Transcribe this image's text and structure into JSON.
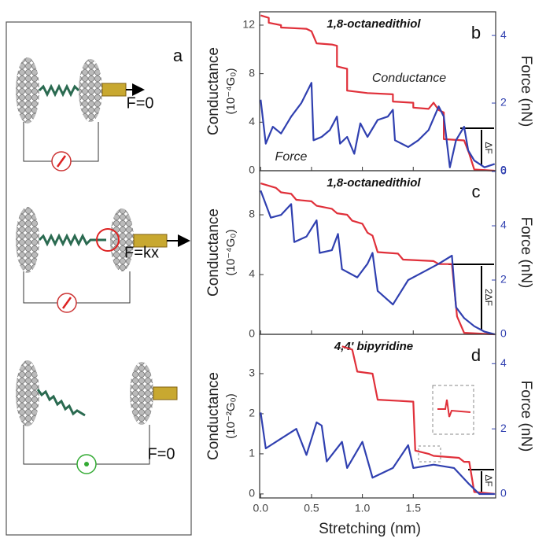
{
  "panel_a": {
    "label": "a",
    "forces": [
      "F=0",
      "F=kx",
      "F=0"
    ]
  },
  "chart_data": [
    {
      "type": "line",
      "title": "1,8-octanedithiol",
      "panel_label": "b",
      "ylabel": "Conductance",
      "yunit": "(10⁻⁴G₀)",
      "y2label": "Force (nN)",
      "xlim": [
        -0.01,
        2.31
      ],
      "ylim": [
        0,
        13.1
      ],
      "yticks": [
        0,
        4,
        8,
        12
      ],
      "y2lim": [
        0,
        4.7
      ],
      "y2ticks": [
        0,
        2,
        4
      ],
      "annotations": [
        "Conductance",
        "Force",
        "ΔF"
      ],
      "series": [
        {
          "color": "#e0303a",
          "x": [
            0,
            0.08,
            0.08,
            0.2,
            0.2,
            0.45,
            0.5,
            0.55,
            0.7,
            0.75,
            0.75,
            0.85,
            0.85,
            1.05,
            1.3,
            1.3,
            1.5,
            1.5,
            1.65,
            1.7,
            1.75,
            1.8,
            1.8,
            2.0,
            2.05,
            2.1,
            2.3
          ],
          "values": [
            12.8,
            12.6,
            12.2,
            12.0,
            11.8,
            11.7,
            11.5,
            10.5,
            10.4,
            10.3,
            8.6,
            8.4,
            6.6,
            6.4,
            6.3,
            5.7,
            5.6,
            5.2,
            5.1,
            5.6,
            5.0,
            4.8,
            2.6,
            2.5,
            1.4,
            0.1,
            0.0
          ]
        },
        {
          "color": "#3040b0",
          "axis": "y2",
          "x": [
            0,
            0.05,
            0.12,
            0.2,
            0.3,
            0.4,
            0.5,
            0.52,
            0.6,
            0.68,
            0.75,
            0.78,
            0.85,
            0.92,
            0.98,
            1.05,
            1.15,
            1.25,
            1.3,
            1.32,
            1.45,
            1.55,
            1.65,
            1.75,
            1.8,
            1.86,
            1.92,
            2.0,
            2.04,
            2.1,
            2.2,
            2.3
          ],
          "values": [
            2.1,
            0.8,
            1.3,
            1.1,
            1.6,
            2.0,
            2.6,
            0.9,
            1.0,
            1.2,
            1.6,
            0.8,
            1.0,
            0.5,
            1.4,
            1.0,
            1.5,
            1.6,
            1.8,
            0.9,
            0.7,
            0.9,
            1.2,
            1.9,
            1.6,
            0.1,
            0.9,
            1.3,
            0.6,
            0.3,
            0.1,
            0.2
          ]
        }
      ]
    },
    {
      "type": "line",
      "title": "1,8-octanedithiol",
      "panel_label": "c",
      "ylabel": "Conductance",
      "yunit": "(10⁻⁴G₀)",
      "y2label": "Force (nN)",
      "xlim": [
        -0.01,
        2.31
      ],
      "ylim": [
        0,
        10.95
      ],
      "yticks": [
        0,
        4,
        8
      ],
      "y2lim": [
        0,
        6.03
      ],
      "y2ticks": [
        0,
        2,
        4,
        6
      ],
      "annotations": [
        "2ΔF"
      ],
      "series": [
        {
          "color": "#e0303a",
          "x": [
            0,
            0.15,
            0.2,
            0.3,
            0.35,
            0.5,
            0.55,
            0.7,
            0.75,
            0.85,
            0.9,
            1.0,
            1.05,
            1.1,
            1.15,
            1.35,
            1.4,
            1.7,
            1.75,
            1.88,
            1.93,
            2.0,
            2.3
          ],
          "values": [
            10.1,
            9.8,
            9.5,
            9.4,
            9.0,
            8.9,
            8.6,
            8.4,
            8.1,
            8.0,
            7.6,
            7.4,
            6.8,
            6.6,
            5.5,
            5.4,
            5.0,
            4.9,
            4.7,
            4.7,
            1.2,
            0.1,
            0.0
          ]
        },
        {
          "color": "#3040b0",
          "axis": "y2",
          "x": [
            0,
            0.1,
            0.2,
            0.3,
            0.33,
            0.45,
            0.55,
            0.58,
            0.7,
            0.76,
            0.8,
            0.95,
            1.05,
            1.1,
            1.15,
            1.3,
            1.45,
            1.6,
            1.75,
            1.88,
            1.92,
            2.0,
            2.1,
            2.2,
            2.3
          ],
          "values": [
            5.3,
            4.3,
            4.4,
            4.8,
            3.4,
            3.6,
            4.2,
            3.0,
            3.1,
            3.7,
            2.4,
            2.1,
            2.6,
            3.0,
            1.6,
            1.1,
            2.0,
            2.3,
            2.6,
            2.9,
            1.0,
            0.6,
            0.3,
            0.1,
            0.0
          ]
        }
      ]
    },
    {
      "type": "line",
      "title": "4,4' bipyridine",
      "panel_label": "d",
      "ylabel": "Conductance",
      "yunit": "(10⁻²G₀)",
      "y2label": "Force (nN)",
      "xlabel": "Stretching (nm)",
      "xlim": [
        -0.01,
        2.31
      ],
      "xticks": [
        {
          "value": 0,
          "label": "0.0"
        },
        0.5,
        {
          "value": 1,
          "label": "1.0"
        },
        1.5
      ],
      "ylim": [
        -0.1,
        3.98
      ],
      "yticks": [
        0,
        1,
        2,
        3
      ],
      "y2lim": [
        -0.12,
        4.9
      ],
      "y2ticks": [
        0,
        2,
        4
      ],
      "annotations": [
        "ΔF"
      ],
      "series": [
        {
          "color": "#e0303a",
          "x": [
            0.8,
            0.9,
            0.95,
            1.1,
            1.15,
            1.5,
            1.52,
            1.65,
            1.7,
            1.95,
            2.0,
            2.05,
            2.1,
            2.3
          ],
          "values": [
            3.68,
            3.6,
            3.05,
            3.0,
            2.35,
            2.3,
            1.08,
            1.0,
            0.95,
            0.9,
            0.8,
            0.8,
            0.05,
            0.0
          ]
        },
        {
          "color": "#3040b0",
          "axis": "y2",
          "x": [
            0,
            0.05,
            0.2,
            0.35,
            0.45,
            0.55,
            0.6,
            0.65,
            0.8,
            0.85,
            1.0,
            1.1,
            1.3,
            1.45,
            1.5,
            1.7,
            1.9,
            2.05,
            2.15,
            2.3
          ],
          "values": [
            2.5,
            1.4,
            1.7,
            2.0,
            1.2,
            2.2,
            2.1,
            1.0,
            1.6,
            0.8,
            1.6,
            0.5,
            0.8,
            1.5,
            0.8,
            0.9,
            0.8,
            0.3,
            0.0,
            0.0
          ]
        }
      ]
    }
  ]
}
